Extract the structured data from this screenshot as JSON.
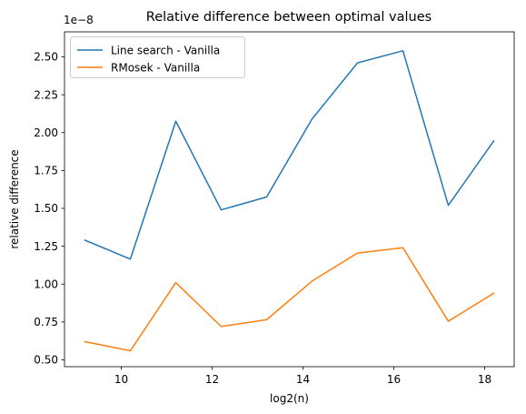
{
  "chart_data": {
    "type": "line",
    "title": "Relative difference between optimal values",
    "xlabel": "log2(n)",
    "ylabel": "relative difference",
    "offset_text": "1e−8",
    "x": [
      9.2,
      10.2,
      11.2,
      12.2,
      13.2,
      14.2,
      15.2,
      16.2,
      17.2,
      18.2
    ],
    "xlim": [
      8.75,
      18.65
    ],
    "ylim": [
      0.455,
      2.665
    ],
    "xticks": [
      10,
      12,
      14,
      16,
      18
    ],
    "xtick_labels": [
      "10",
      "12",
      "14",
      "16",
      "18"
    ],
    "yticks": [
      0.5,
      0.75,
      1.0,
      1.25,
      1.5,
      1.75,
      2.0,
      2.25,
      2.5
    ],
    "ytick_labels": [
      "0.50",
      "0.75",
      "1.00",
      "1.25",
      "1.50",
      "1.75",
      "2.00",
      "2.25",
      "2.50"
    ],
    "grid": false,
    "legend_position": "upper-left",
    "series": [
      {
        "name": "Line search - Vanilla",
        "color": "#1f77b4",
        "values": [
          1.29,
          1.165,
          2.075,
          1.49,
          1.575,
          2.09,
          2.46,
          2.54,
          1.52,
          1.945
        ]
      },
      {
        "name": "RMosek - Vanilla",
        "color": "#ff7f0e",
        "values": [
          0.62,
          0.56,
          1.01,
          0.72,
          0.765,
          1.02,
          1.205,
          1.24,
          0.755,
          0.94
        ]
      }
    ]
  }
}
